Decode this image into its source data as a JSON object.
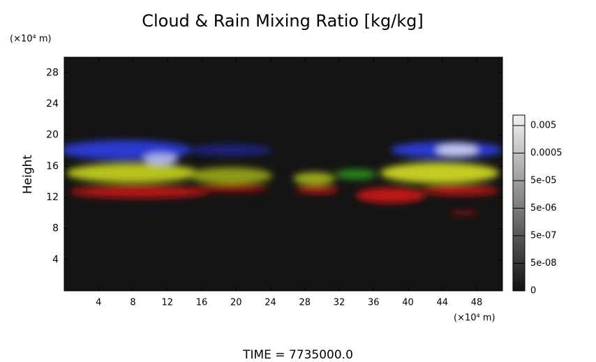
{
  "chart_data": {
    "type": "heatmap",
    "title": "Cloud & Rain Mixing Ratio [kg/kg]",
    "x_unit": "(×10⁴ m)",
    "y_unit": "(×10⁴ m)",
    "ylabel": "Height",
    "footer": "TIME = 7735000.0",
    "xlim": [
      0,
      51
    ],
    "ylim": [
      0,
      30
    ],
    "xticks": [
      4,
      8,
      12,
      16,
      20,
      24,
      28,
      32,
      36,
      40,
      44,
      48
    ],
    "yticks": [
      4,
      8,
      12,
      16,
      20,
      24,
      28
    ],
    "colorbar": {
      "ticks": [
        0.005,
        0.0005,
        {
          "value": 5e-05,
          "label": "5e-05"
        },
        {
          "value": 5e-06,
          "label": "5e-06"
        },
        {
          "value": 5e-07,
          "label": "5e-07"
        },
        {
          "value": 5e-08,
          "label": "5e-08"
        },
        0
      ]
    }
  }
}
